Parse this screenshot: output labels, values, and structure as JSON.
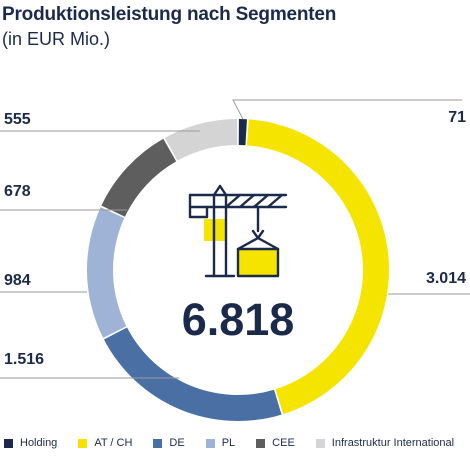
{
  "title": "Produktionsleistung nach Segmenten",
  "subtitle": "(in EUR Mio.)",
  "chart_data": {
    "type": "pie",
    "total": "6.818",
    "segments": [
      {
        "name": "Holding",
        "value": 71,
        "label": "71",
        "color": "#1b2a4a"
      },
      {
        "name": "AT / CH",
        "value": 3014,
        "label": "3.014",
        "color": "#f5e400"
      },
      {
        "name": "DE",
        "value": 1516,
        "label": "1.516",
        "color": "#4a6fa5"
      },
      {
        "name": "PL",
        "value": 984,
        "label": "984",
        "color": "#9fb3d6"
      },
      {
        "name": "CEE",
        "value": 678,
        "label": "678",
        "color": "#5e5e5e"
      },
      {
        "name": "Infrastruktur International",
        "value": 555,
        "label": "555",
        "color": "#d4d4d4"
      }
    ],
    "center_icon": "crane-container-icon"
  }
}
